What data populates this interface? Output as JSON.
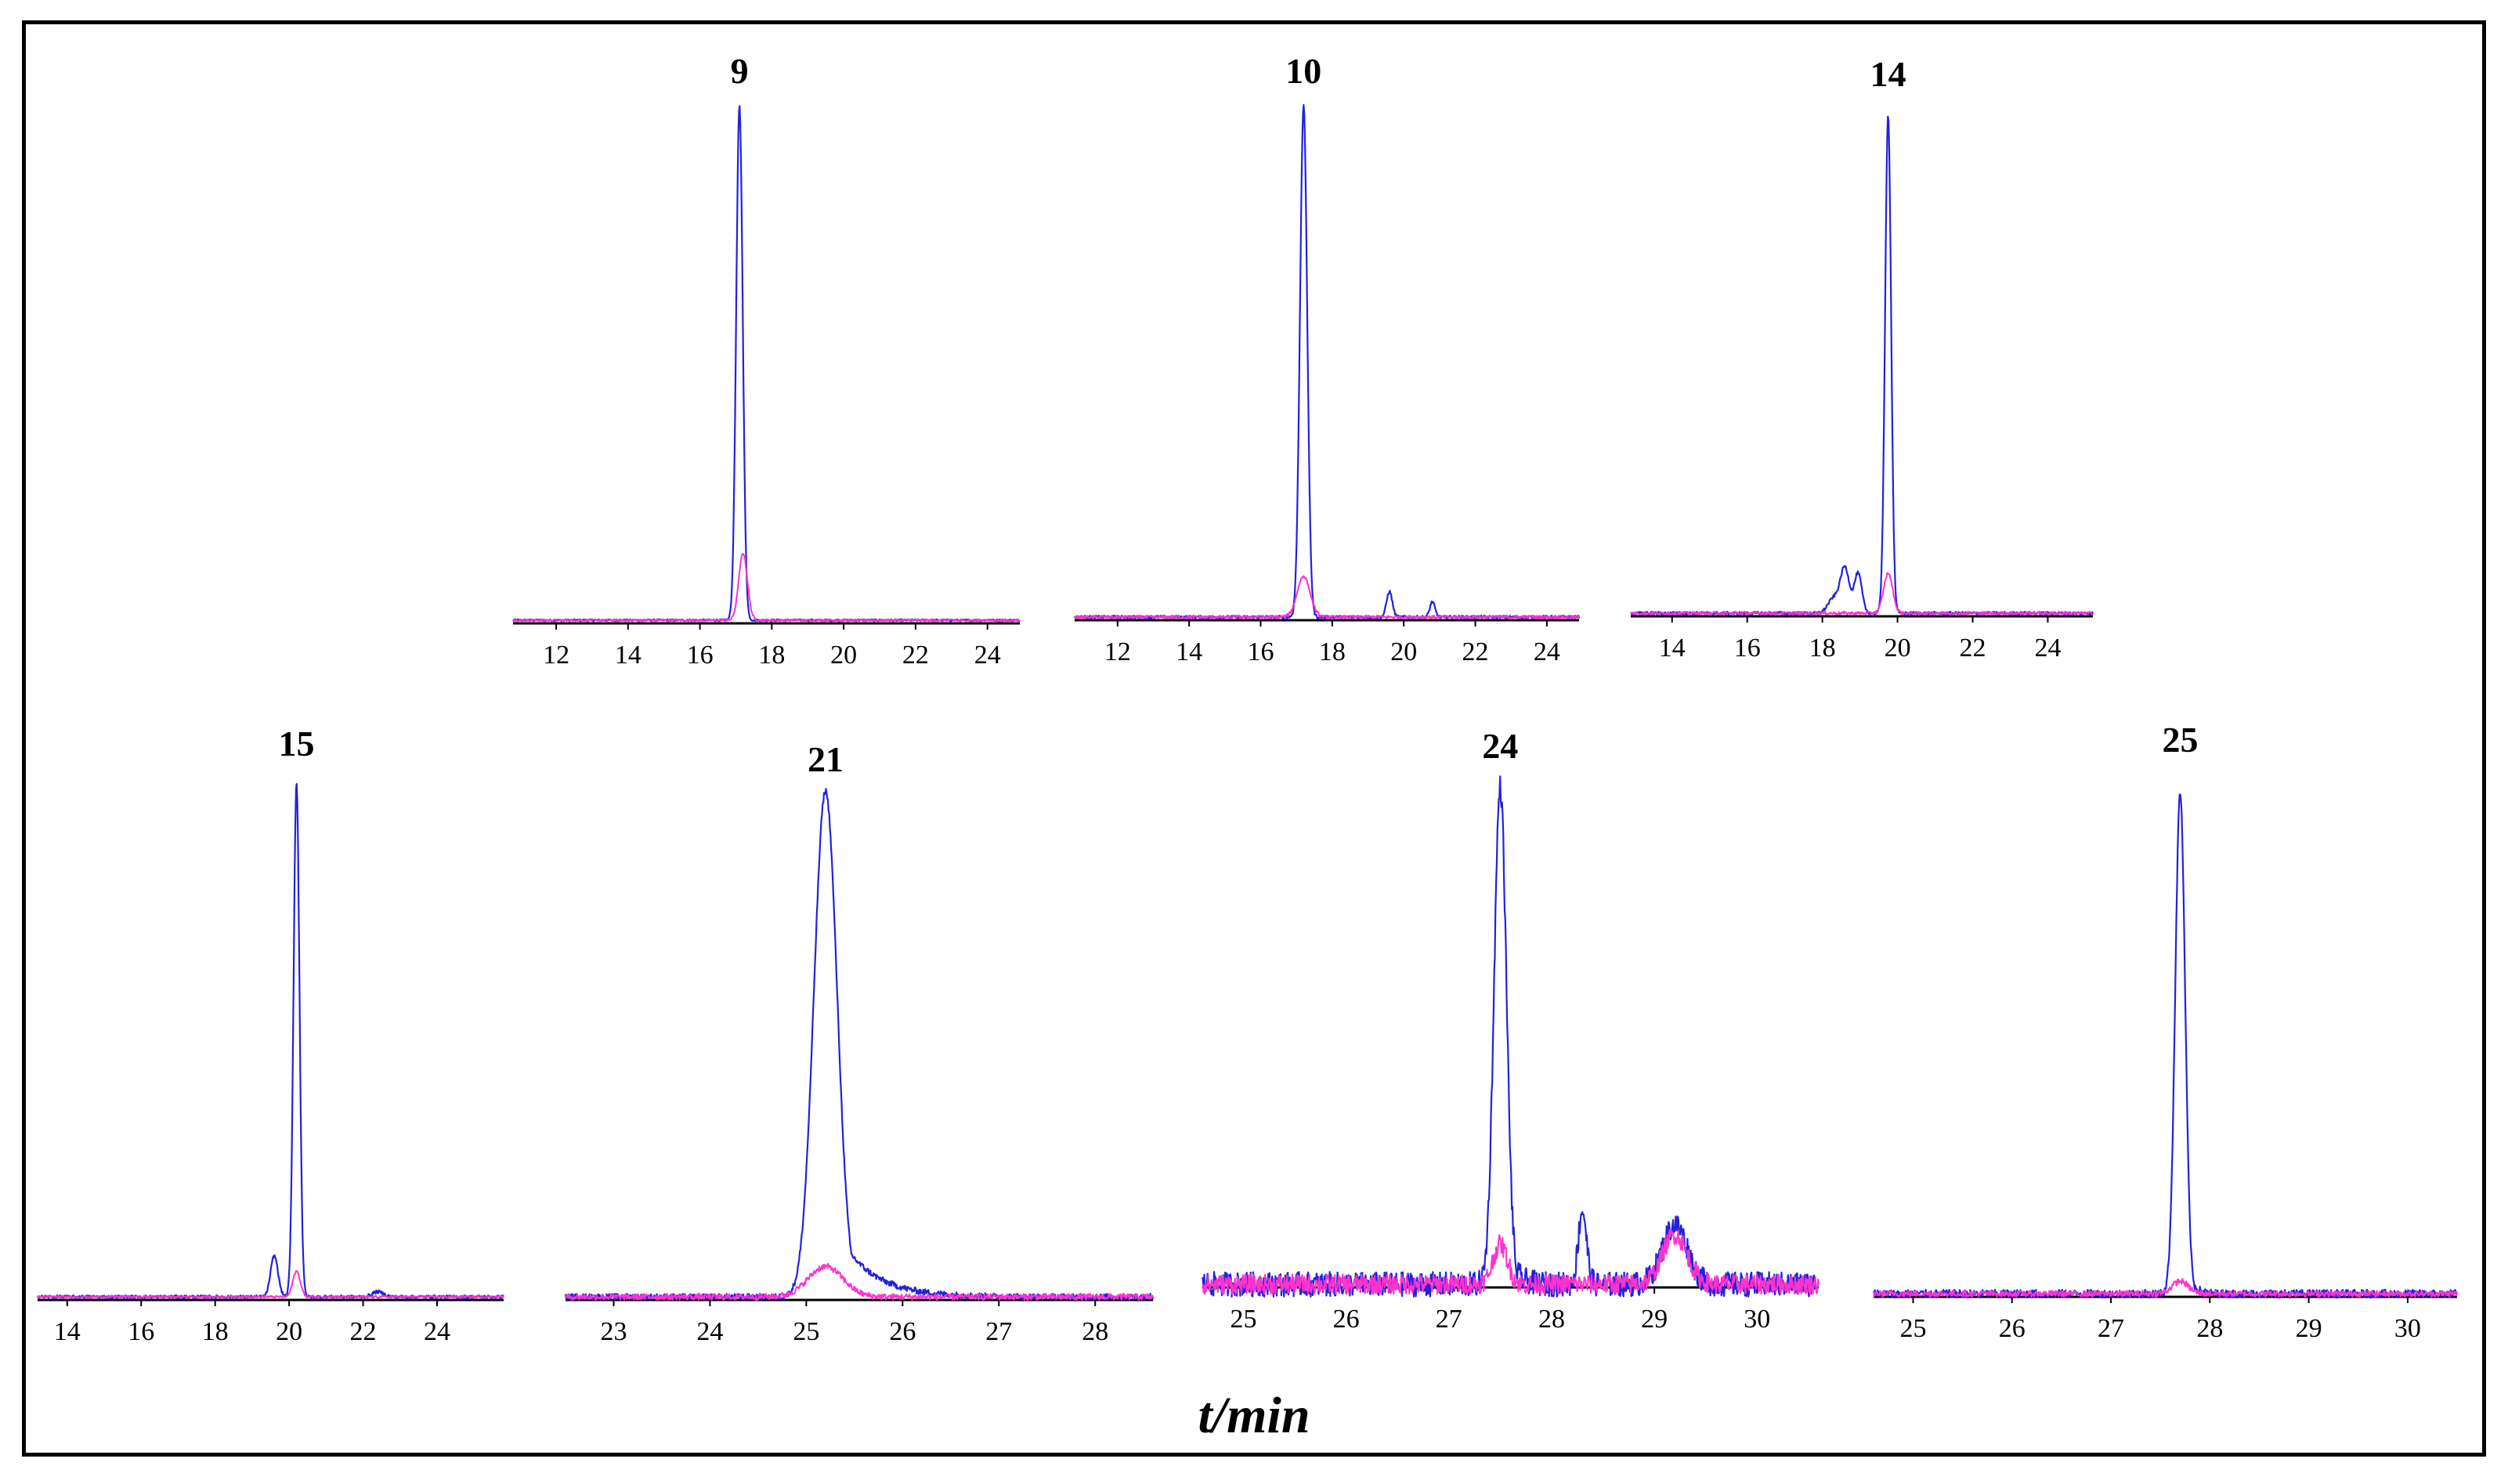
{
  "chart_data": [
    {
      "type": "line",
      "title": "9",
      "xlabel": "t/min",
      "xlim": [
        10.8,
        24.9
      ],
      "xticks": [
        12,
        14,
        16,
        18,
        20,
        22,
        24
      ],
      "grid": false,
      "series": [
        {
          "color": "#2222dd",
          "peaks": [
            {
              "t": 17.1,
              "h": 1.0,
              "w": 0.09
            }
          ],
          "noise": 0.002
        },
        {
          "color": "#ff33cc",
          "peaks": [
            {
              "t": 17.2,
              "h": 0.13,
              "w": 0.12
            }
          ],
          "noise": 0.002
        }
      ]
    },
    {
      "type": "line",
      "title": "10",
      "xlabel": "t/min",
      "xlim": [
        10.8,
        24.9
      ],
      "xticks": [
        12,
        14,
        16,
        18,
        20,
        22,
        24
      ],
      "grid": false,
      "series": [
        {
          "color": "#2222dd",
          "peaks": [
            {
              "t": 17.2,
              "h": 1.0,
              "w": 0.1
            },
            {
              "t": 19.6,
              "h": 0.05,
              "w": 0.08
            },
            {
              "t": 20.8,
              "h": 0.03,
              "w": 0.07
            }
          ],
          "noise": 0.003
        },
        {
          "color": "#ff33cc",
          "peaks": [
            {
              "t": 17.2,
              "h": 0.08,
              "w": 0.18
            }
          ],
          "noise": 0.003
        }
      ]
    },
    {
      "type": "line",
      "title": "14",
      "xlabel": "t/min",
      "xlim": [
        12.9,
        25.2
      ],
      "xticks": [
        14,
        16,
        18,
        20,
        22,
        24
      ],
      "grid": false,
      "series": [
        {
          "color": "#2222dd",
          "peaks": [
            {
              "t": 19.75,
              "h": 1.0,
              "w": 0.08
            },
            {
              "t": 18.6,
              "h": 0.09,
              "w": 0.12
            },
            {
              "t": 18.95,
              "h": 0.08,
              "w": 0.1
            },
            {
              "t": 18.3,
              "h": 0.03,
              "w": 0.15
            }
          ],
          "noise": 0.003
        },
        {
          "color": "#ff33cc",
          "peaks": [
            {
              "t": 19.75,
              "h": 0.08,
              "w": 0.12
            }
          ],
          "noise": 0.003
        }
      ]
    },
    {
      "type": "line",
      "title": "15",
      "xlabel": "t/min",
      "xlim": [
        13.2,
        25.8
      ],
      "xticks": [
        14,
        16,
        18,
        20,
        22,
        24
      ],
      "grid": false,
      "series": [
        {
          "color": "#2222dd",
          "peaks": [
            {
              "t": 20.2,
              "h": 1.0,
              "w": 0.08
            },
            {
              "t": 19.6,
              "h": 0.08,
              "w": 0.1
            },
            {
              "t": 22.4,
              "h": 0.01,
              "w": 0.15
            }
          ],
          "noise": 0.003
        },
        {
          "color": "#ff33cc",
          "peaks": [
            {
              "t": 20.2,
              "h": 0.05,
              "w": 0.1
            }
          ],
          "noise": 0.002
        }
      ]
    },
    {
      "type": "line",
      "title": "21",
      "xlabel": "t/min",
      "xlim": [
        22.5,
        28.6
      ],
      "xticks": [
        23,
        24,
        25,
        26,
        27,
        28
      ],
      "grid": false,
      "series": [
        {
          "color": "#2222dd",
          "peaks": [
            {
              "t": 25.2,
              "h": 1.0,
              "w": 0.12,
              "tail": 0.35
            }
          ],
          "noise": 0.006
        },
        {
          "color": "#ff33cc",
          "peaks": [
            {
              "t": 25.2,
              "h": 0.06,
              "w": 0.18
            }
          ],
          "noise": 0.006
        }
      ]
    },
    {
      "type": "line",
      "title": "24",
      "xlabel": "t/min",
      "xlim": [
        24.6,
        30.6
      ],
      "xticks": [
        25,
        26,
        27,
        28,
        29,
        30
      ],
      "grid": false,
      "series": [
        {
          "color": "#2222dd",
          "peaks": [
            {
              "t": 27.5,
              "h": 1.0,
              "w": 0.06,
              "tail": 0.08
            },
            {
              "t": 28.3,
              "h": 0.15,
              "w": 0.04
            },
            {
              "t": 29.2,
              "h": 0.12,
              "w": 0.12
            }
          ],
          "noise": 0.025
        },
        {
          "color": "#ff33cc",
          "peaks": [
            {
              "t": 27.5,
              "h": 0.08,
              "w": 0.07
            },
            {
              "t": 29.2,
              "h": 0.1,
              "w": 0.12
            }
          ],
          "noise": 0.02
        }
      ]
    },
    {
      "type": "line",
      "title": "25",
      "xlabel": "t/min",
      "xlim": [
        24.6,
        30.5
      ],
      "xticks": [
        25,
        26,
        27,
        28,
        29,
        30
      ],
      "grid": false,
      "series": [
        {
          "color": "#2222dd",
          "peaks": [
            {
              "t": 27.7,
              "h": 1.0,
              "w": 0.05,
              "tail": 0.06
            }
          ],
          "noise": 0.008
        },
        {
          "color": "#ff33cc",
          "peaks": [
            {
              "t": 27.7,
              "h": 0.025,
              "w": 0.08
            }
          ],
          "noise": 0.006
        }
      ]
    }
  ],
  "figure": {
    "xlabel": "t/min",
    "frame_color": "#000000"
  }
}
